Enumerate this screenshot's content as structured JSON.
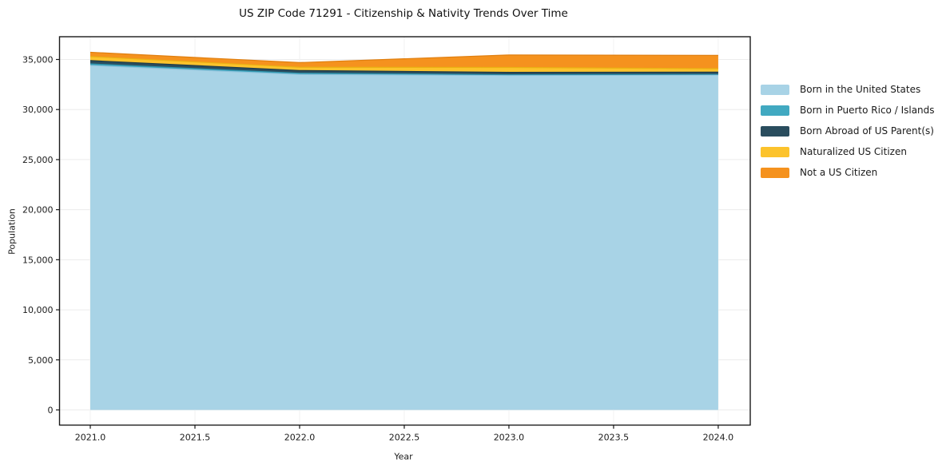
{
  "chart_data": {
    "type": "area",
    "stacked": true,
    "title": "US ZIP Code 71291 - Citizenship & Nativity Trends Over Time",
    "xlabel": "Year",
    "ylabel": "Population",
    "legend_position": "right",
    "grid": true,
    "x": [
      2021,
      2022,
      2023,
      2024
    ],
    "series": [
      {
        "name": "Born in the United States",
        "color": "#a8d3e6",
        "edge_color": "#8fc2db",
        "values": [
          34400,
          33500,
          33400,
          33450
        ]
      },
      {
        "name": "Born in Puerto Rico / Islands",
        "color": "#41a9c1",
        "edge_color": "#2f93ac",
        "values": [
          160,
          130,
          80,
          60
        ]
      },
      {
        "name": "Born Abroad of US Parent(s)",
        "color": "#2a4d5e",
        "edge_color": "#1e3a48",
        "values": [
          330,
          270,
          240,
          230
        ]
      },
      {
        "name": "Naturalized US Citizen",
        "color": "#fcc32c",
        "edge_color": "#eab113",
        "values": [
          400,
          320,
          480,
          340
        ]
      },
      {
        "name": "Not a US Citizen",
        "color": "#f5921e",
        "edge_color": "#e07f10",
        "values": [
          430,
          470,
          1250,
          1330
        ]
      }
    ],
    "x_ticks": [
      2021.0,
      2021.5,
      2022.0,
      2022.5,
      2023.0,
      2023.5,
      2024.0
    ],
    "x_tick_labels": [
      "2021.0",
      "2021.5",
      "2022.0",
      "2022.5",
      "2023.0",
      "2023.5",
      "2024.0"
    ],
    "y_ticks": [
      0,
      5000,
      10000,
      15000,
      20000,
      25000,
      30000,
      35000
    ],
    "y_tick_labels": [
      "0",
      "5,000",
      "10,000",
      "15,000",
      "20,000",
      "25,000",
      "30,000",
      "35,000"
    ],
    "xlim": [
      2020.853,
      2024.153
    ],
    "ylim": [
      -1515,
      37272
    ],
    "axis_color": "#1a1a1a",
    "grid_color_h": "#ececec",
    "grid_color_v": "#f2f2f2"
  }
}
